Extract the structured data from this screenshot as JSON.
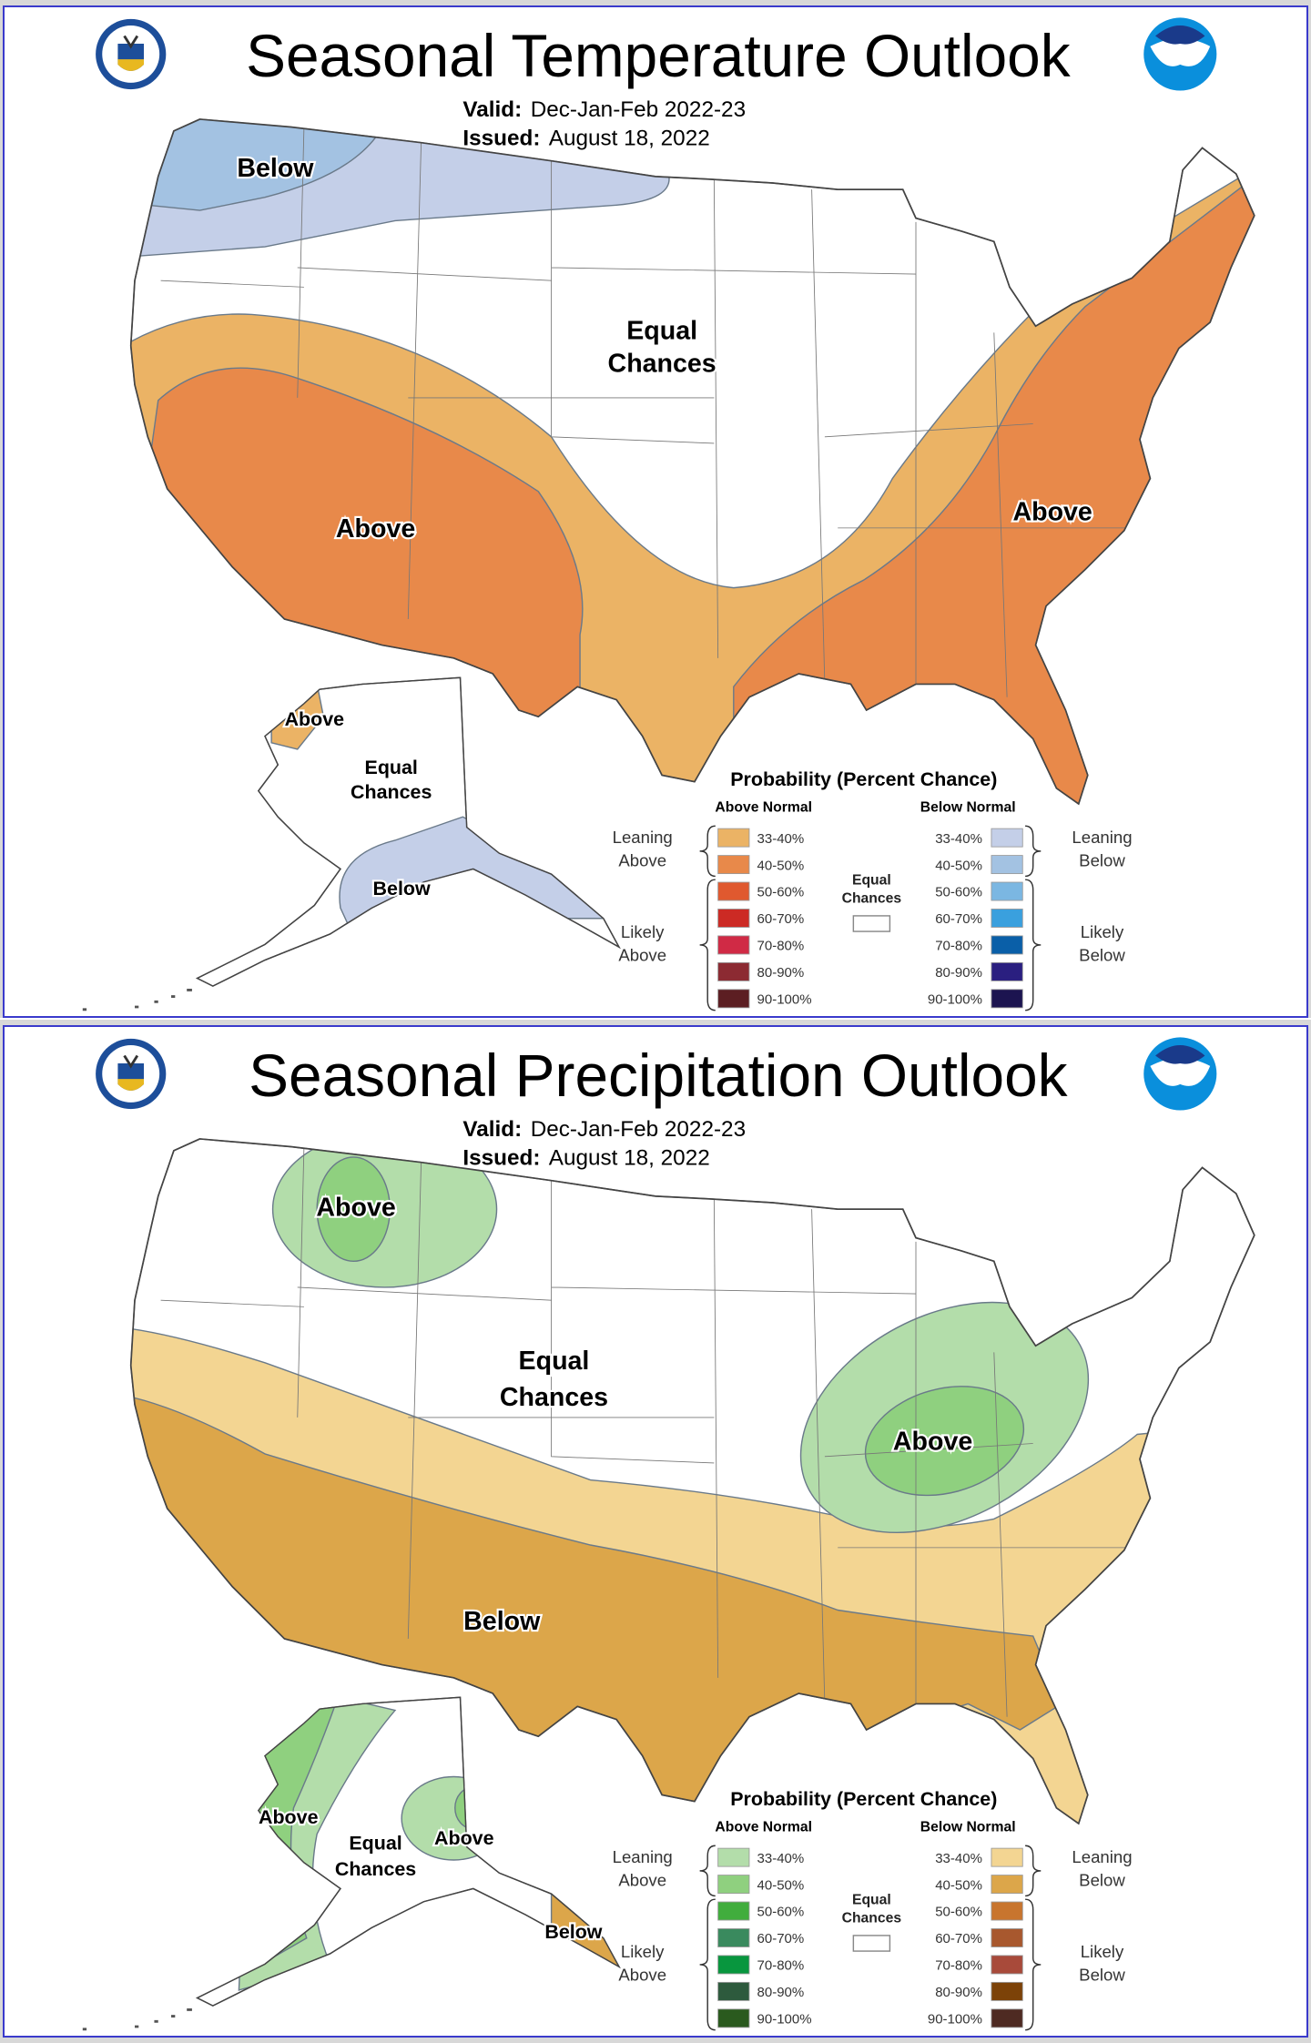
{
  "panels": [
    {
      "title": "Seasonal Temperature Outlook",
      "valid_label": "Valid:",
      "valid_value": "Dec-Jan-Feb 2022-23",
      "issued_label": "Issued:",
      "issued_value": "August 18, 2022",
      "logo_left": "U.S. Department of Commerce seal",
      "logo_right": "NOAA",
      "map_labels": {
        "conus_1": "Below",
        "conus_2a": "Equal",
        "conus_2b": "Chances",
        "conus_3": "Above",
        "conus_4": "Above",
        "ak_1": "Above",
        "ak_2a": "Equal",
        "ak_2b": "Chances",
        "ak_3": "Below"
      },
      "legend": {
        "title": "Probability (Percent Chance)",
        "above_header": "Above Normal",
        "below_header": "Below Normal",
        "ranges": [
          "33-40%",
          "40-50%",
          "50-60%",
          "60-70%",
          "70-80%",
          "80-90%",
          "90-100%"
        ],
        "above_colors": [
          "#ebb365",
          "#e8894a",
          "#e0592f",
          "#cc2a24",
          "#d02a45",
          "#8c2a32",
          "#5c1e22"
        ],
        "below_colors": [
          "#c4cfe8",
          "#a3c2e2",
          "#7bb7e2",
          "#3aa0de",
          "#0a5fa8",
          "#2a1f80",
          "#1c1450"
        ],
        "leaning_above": [
          "Leaning",
          "Above"
        ],
        "likely_above": [
          "Likely",
          "Above"
        ],
        "leaning_below": [
          "Leaning",
          "Below"
        ],
        "likely_below": [
          "Likely",
          "Below"
        ],
        "equal": [
          "Equal",
          "Chances"
        ]
      }
    },
    {
      "title": "Seasonal Precipitation Outlook",
      "valid_label": "Valid:",
      "valid_value": "Dec-Jan-Feb 2022-23",
      "issued_label": "Issued:",
      "issued_value": "August 18, 2022",
      "logo_left": "U.S. Department of Commerce seal",
      "logo_right": "NOAA",
      "map_labels": {
        "conus_1": "Above",
        "conus_2a": "Equal",
        "conus_2b": "Chances",
        "conus_3": "Above",
        "conus_4": "Below",
        "ak_1": "Above",
        "ak_2a": "Equal",
        "ak_2b": "Chances",
        "ak_3": "Above",
        "ak_4": "Below"
      },
      "legend": {
        "title": "Probability (Percent Chance)",
        "above_header": "Above Normal",
        "below_header": "Below Normal",
        "ranges": [
          "33-40%",
          "40-50%",
          "50-60%",
          "60-70%",
          "70-80%",
          "80-90%",
          "90-100%"
        ],
        "above_colors": [
          "#b3ddaa",
          "#8fd07f",
          "#41ad3d",
          "#3a8a5e",
          "#08963e",
          "#2d5a3d",
          "#2a5a1e"
        ],
        "below_colors": [
          "#f3d592",
          "#dca64a",
          "#c8752e",
          "#a8582e",
          "#a84a3a",
          "#7c4208",
          "#4e2a22"
        ],
        "leaning_above": [
          "Leaning",
          "Above"
        ],
        "likely_above": [
          "Likely",
          "Above"
        ],
        "leaning_below": [
          "Leaning",
          "Below"
        ],
        "likely_below": [
          "Likely",
          "Below"
        ],
        "equal": [
          "Equal",
          "Chances"
        ]
      }
    }
  ]
}
